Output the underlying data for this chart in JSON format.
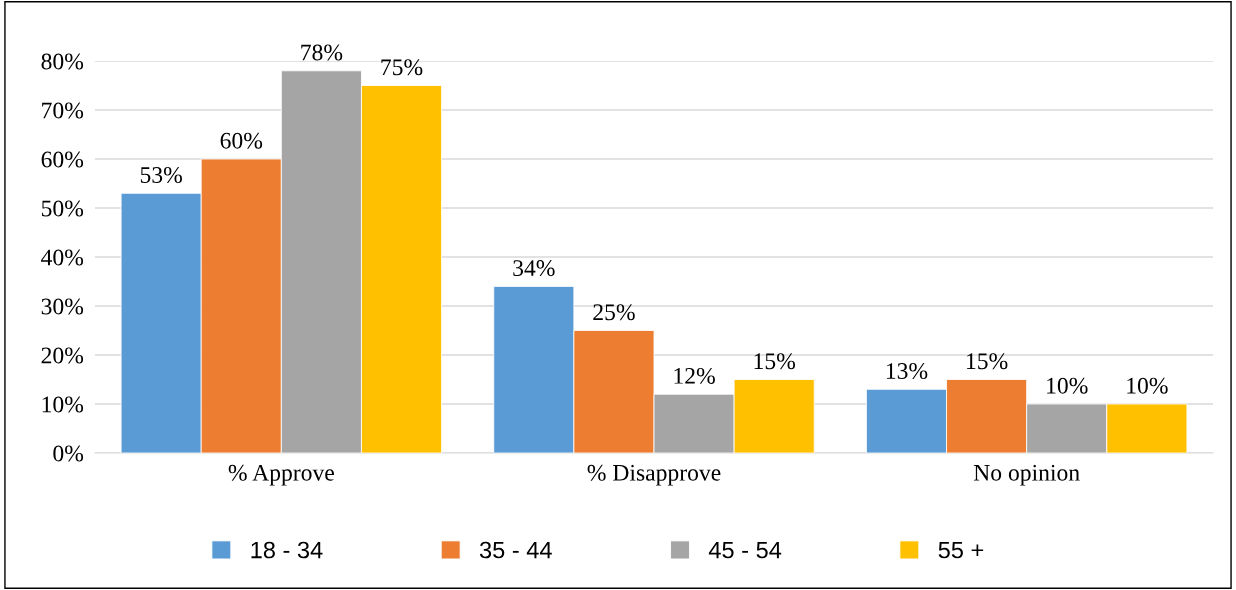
{
  "chart_data": {
    "type": "bar",
    "categories": [
      "% Approve",
      "% Disapprove",
      "No opinion"
    ],
    "series": [
      {
        "name": "18 - 34",
        "color": "#5b9bd5",
        "values": [
          53,
          34,
          13
        ]
      },
      {
        "name": "35 - 44",
        "color": "#ed7d31",
        "values": [
          60,
          25,
          15
        ]
      },
      {
        "name": "45 - 54",
        "color": "#a5a5a5",
        "values": [
          78,
          12,
          10
        ]
      },
      {
        "name": "55 +",
        "color": "#ffc000",
        "values": [
          75,
          15,
          10
        ]
      }
    ],
    "ylim": [
      0,
      80
    ],
    "yticks": [
      {
        "value": 0,
        "label": "0%"
      },
      {
        "value": 10,
        "label": "10%"
      },
      {
        "value": 20,
        "label": "20%"
      },
      {
        "value": 30,
        "label": "30%"
      },
      {
        "value": 40,
        "label": "40%"
      },
      {
        "value": 50,
        "label": "50%"
      },
      {
        "value": 60,
        "label": "60%"
      },
      {
        "value": 70,
        "label": "70%"
      },
      {
        "value": 80,
        "label": "80%"
      }
    ],
    "value_labels": [
      [
        "53%",
        "34%",
        "13%"
      ],
      [
        "60%",
        "25%",
        "15%"
      ],
      [
        "78%",
        "12%",
        "10%"
      ],
      [
        "75%",
        "15%",
        "10%"
      ]
    ],
    "grid": "y",
    "legend": "bottom"
  }
}
